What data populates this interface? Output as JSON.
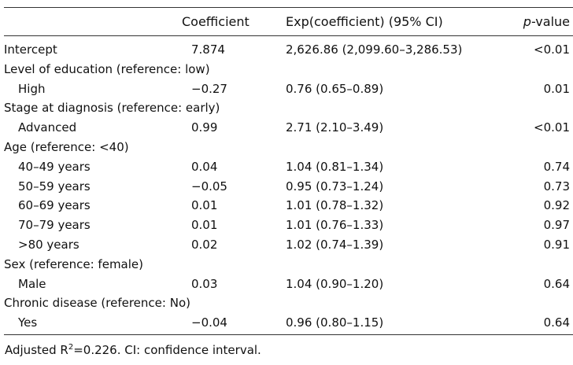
{
  "header": {
    "coef": "Coefficient",
    "exp": "Exp(coefficient) (95% CI)",
    "p_italic": "p",
    "p_rest": "-value"
  },
  "rows": [
    {
      "label": "Intercept",
      "coef": "7.874",
      "exp": "2,626.86 (2,099.60–3,286.53)",
      "p": "<0.01"
    },
    {
      "label": "Level of education (reference: low)",
      "coef": "",
      "exp": "",
      "p": ""
    },
    {
      "label": "High",
      "coef": "−0.27",
      "exp": "0.76 (0.65–0.89)",
      "p": "0.01"
    },
    {
      "label": "Stage at diagnosis (reference: early)",
      "coef": "",
      "exp": "",
      "p": ""
    },
    {
      "label": "Advanced",
      "coef": "0.99",
      "exp": "2.71 (2.10–3.49)",
      "p": "<0.01"
    },
    {
      "label": "Age (reference: <40)",
      "coef": "",
      "exp": "",
      "p": ""
    },
    {
      "label": "40–49 years",
      "coef": "0.04",
      "exp": "1.04 (0.81–1.34)",
      "p": "0.74"
    },
    {
      "label": "50–59 years",
      "coef": "−0.05",
      "exp": "0.95 (0.73–1.24)",
      "p": "0.73"
    },
    {
      "label": "60–69 years",
      "coef": "0.01",
      "exp": "1.01 (0.78–1.32)",
      "p": "0.92"
    },
    {
      "label": "70–79 years",
      "coef": "0.01",
      "exp": "1.01 (0.76–1.33)",
      "p": "0.97"
    },
    {
      "label": ">80 years",
      "coef": "0.02",
      "exp": "1.02 (0.74–1.39)",
      "p": "0.91"
    },
    {
      "label": "Sex (reference: female)",
      "coef": "",
      "exp": "",
      "p": ""
    },
    {
      "label": "Male",
      "coef": "0.03",
      "exp": "1.04 (0.90–1.20)",
      "p": "0.64"
    },
    {
      "label": "Chronic disease (reference: No)",
      "coef": "",
      "exp": "",
      "p": ""
    },
    {
      "label": "Yes",
      "coef": "−0.04",
      "exp": "0.96 (0.80–1.15)",
      "p": "0.64"
    }
  ],
  "footnote": {
    "part1": "Adjusted R",
    "sup": "2",
    "part2": "=0.226. CI: confidence interval."
  }
}
